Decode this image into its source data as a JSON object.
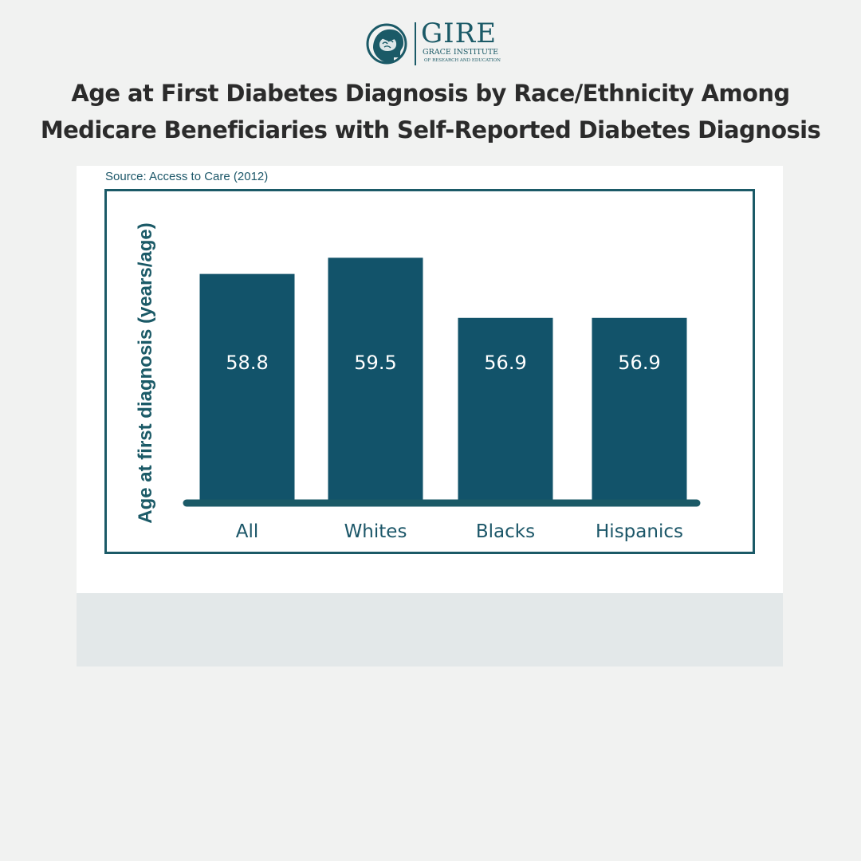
{
  "brand": {
    "name": "GIRE",
    "subtitle": "GRACE INSTITUTE",
    "tagline": "OF RESEARCH AND EDUCATION",
    "logo_icon": "brain-graduation-cap-icon",
    "color": "#1b5a67"
  },
  "header": {
    "title_line1": "Age at First Diabetes Diagnosis by Race/Ethnicity Among",
    "title_line2": "Medicare Beneficiaries with Self-Reported Diabetes Diagnosis"
  },
  "source": "Source: Access to Care (2012)",
  "colors": {
    "bar": "#12536a",
    "axis": "#1b5a67",
    "label_text": "#ffffff",
    "category_text": "#1b5668",
    "background": "#f1f2f1"
  },
  "chart_data": {
    "type": "bar",
    "title": "Age at First Diabetes Diagnosis by Race/Ethnicity Among Medicare Beneficiaries with Self-Reported Diabetes Diagnosis",
    "categories": [
      "All",
      "Whites",
      "Blacks",
      "Hispanics"
    ],
    "values": [
      58.8,
      59.5,
      56.9,
      56.9
    ],
    "value_labels": [
      "58.8",
      "59.5",
      "56.9",
      "56.9"
    ],
    "xlabel": "",
    "ylabel": "Age at first diagnosis (years/age)",
    "ylim": [
      49,
      60.2
    ],
    "grid": false,
    "legend": "none"
  }
}
